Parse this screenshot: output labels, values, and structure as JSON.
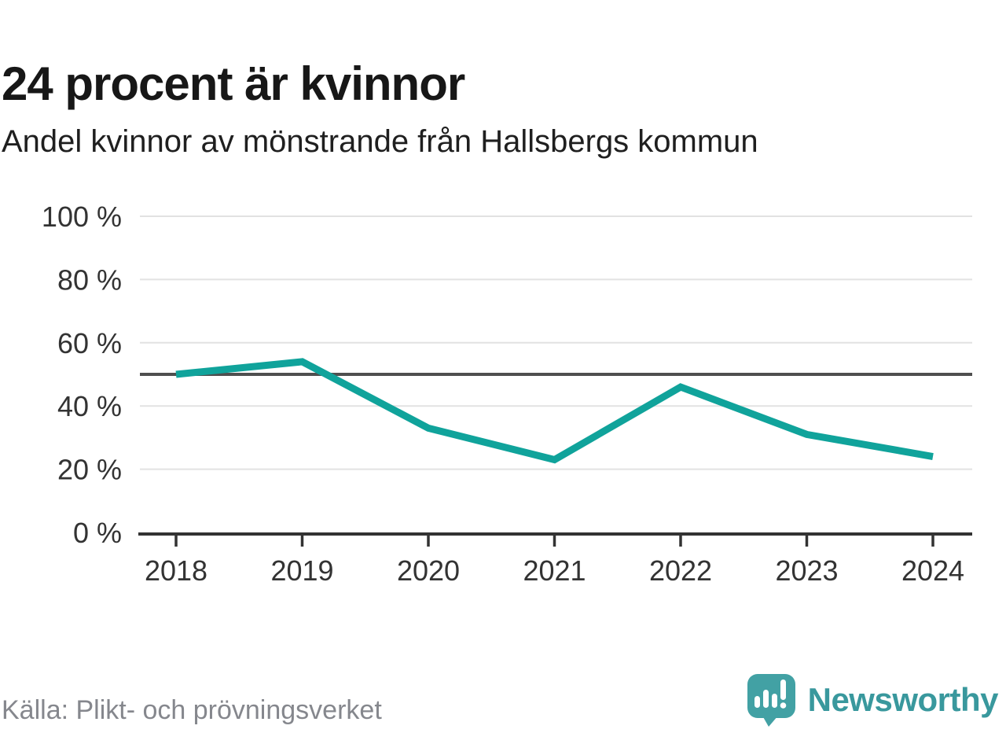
{
  "header": {
    "title": "24 procent är kvinnor",
    "subtitle": "Andel kvinnor av mönstrande från Hallsbergs kommun"
  },
  "chart_data": {
    "type": "line",
    "title": "24 procent är kvinnor",
    "subtitle": "Andel kvinnor av mönstrande från Hallsbergs kommun",
    "series_name": "Andel kvinnor av mönstrande, Hallsbergs kommun",
    "x": [
      "2018",
      "2019",
      "2020",
      "2021",
      "2022",
      "2023",
      "2024"
    ],
    "values": [
      50,
      54,
      33,
      23,
      46,
      31,
      24
    ],
    "unit": "%",
    "ylim": [
      0,
      100
    ],
    "ytick_values": [
      0,
      20,
      40,
      60,
      80,
      100
    ],
    "ytick_labels": [
      "0 %",
      "20 %",
      "40 %",
      "60 %",
      "80 %",
      "100 %"
    ],
    "reference_value": 50,
    "grid": true,
    "legend": "none",
    "colors": {
      "line": "#10a39b",
      "reference_line": "#4f4f4f",
      "gridline": "#e2e2e2",
      "axis": "#333333",
      "tick_text": "#333333"
    }
  },
  "footer": {
    "source": "Källa: Plikt- och prövningsverket",
    "brand": "Newsworthy",
    "brand_color": "#39989d",
    "logo_bubble_color": "#42a1a4"
  }
}
